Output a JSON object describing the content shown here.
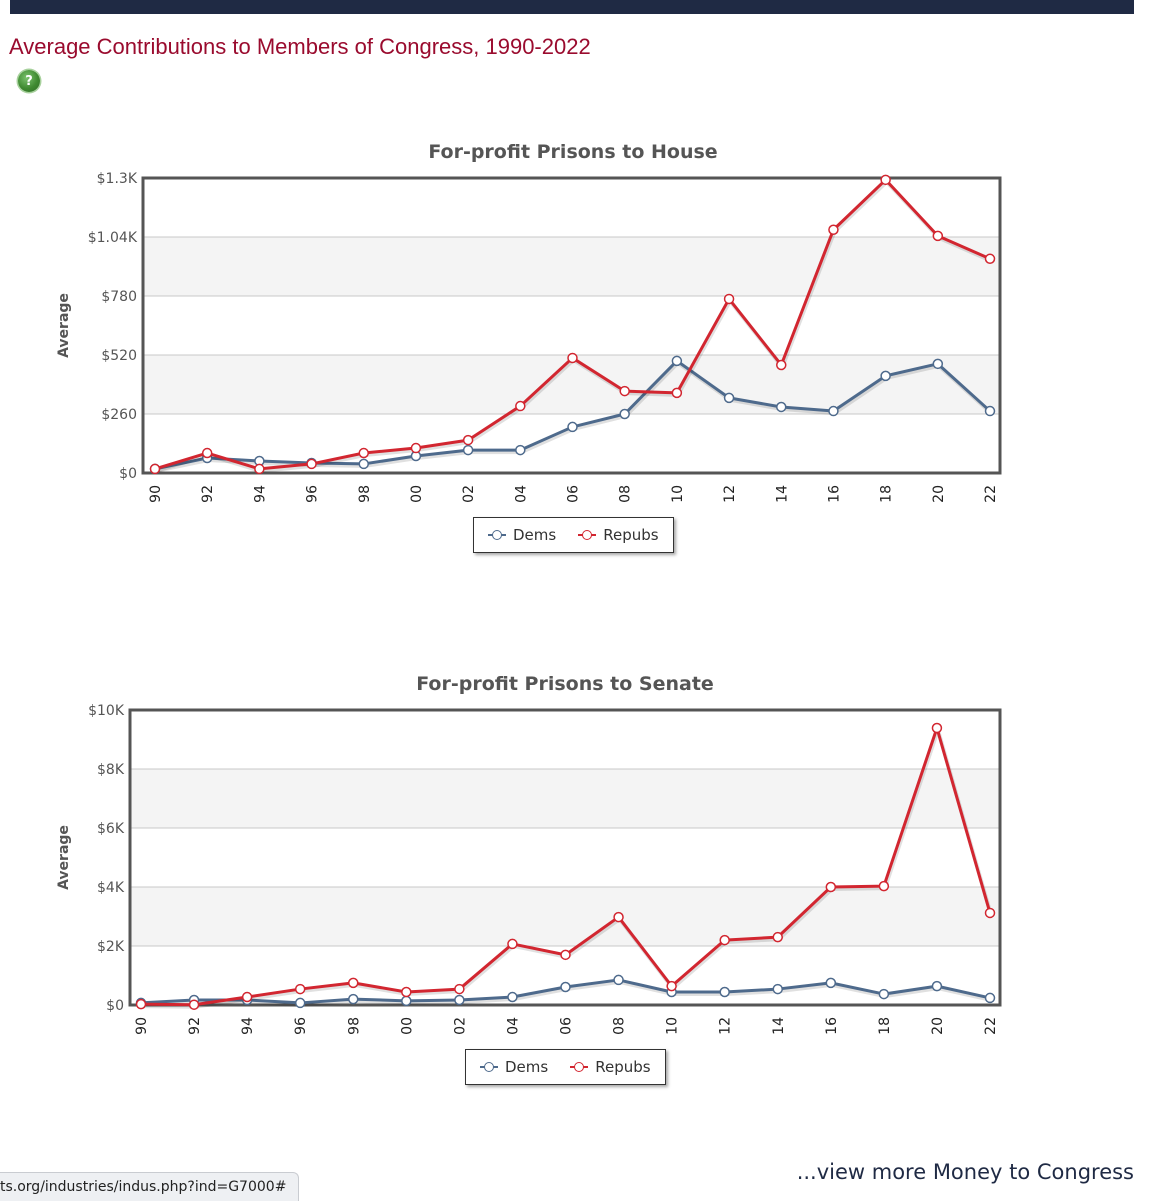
{
  "page": {
    "title": "Average Contributions to Members of Congress, 1990-2022",
    "help_icon": "question-mark-icon",
    "more_link": "...view more Money to Congress",
    "status_url": "ts.org/industries/indus.php?ind=G7000#"
  },
  "colors": {
    "header_bar": "#1f2a44",
    "title": "#9a0b2e",
    "dems": "#4e6a8c",
    "repubs": "#d22630",
    "band": "#f4f4f4",
    "grid": "#c8c8c8"
  },
  "chart_data": [
    {
      "type": "line",
      "title": "For-profit Prisons to House",
      "xlabel": "",
      "ylabel": "Average",
      "categories": [
        "90",
        "92",
        "94",
        "96",
        "98",
        "00",
        "02",
        "04",
        "06",
        "08",
        "10",
        "12",
        "14",
        "16",
        "18",
        "20",
        "22"
      ],
      "ylim": [
        0,
        1300
      ],
      "yticks": [
        0,
        260,
        520,
        780,
        1040,
        1300
      ],
      "ytick_labels": [
        "$0",
        "$260",
        "$520",
        "$780",
        "$1.04K",
        "$1.3K"
      ],
      "grid": true,
      "legend": "bottom-center",
      "series": [
        {
          "name": "Dems",
          "color": "#4e6a8c",
          "values": [
            18,
            66,
            53,
            44,
            40,
            75,
            101,
            101,
            203,
            260,
            494,
            331,
            291,
            273,
            428,
            481,
            273
          ]
        },
        {
          "name": "Repubs",
          "color": "#d22630",
          "values": [
            18,
            88,
            18,
            40,
            88,
            110,
            145,
            295,
            507,
            361,
            353,
            767,
            476,
            1072,
            1292,
            1045,
            944
          ]
        }
      ]
    },
    {
      "type": "line",
      "title": "For-profit Prisons to Senate",
      "xlabel": "",
      "ylabel": "Average",
      "categories": [
        "90",
        "92",
        "94",
        "96",
        "98",
        "00",
        "02",
        "04",
        "06",
        "08",
        "10",
        "12",
        "14",
        "16",
        "18",
        "20",
        "22"
      ],
      "ylim": [
        0,
        10000
      ],
      "yticks": [
        0,
        2000,
        4000,
        6000,
        8000,
        10000
      ],
      "ytick_labels": [
        "$0",
        "$2K",
        "$4K",
        "$6K",
        "$8K",
        "$10K"
      ],
      "grid": true,
      "legend": "bottom-center",
      "series": [
        {
          "name": "Dems",
          "color": "#4e6a8c",
          "values": [
            70,
            170,
            170,
            70,
            200,
            140,
            170,
            270,
            610,
            850,
            440,
            440,
            540,
            750,
            370,
            640,
            240
          ]
        },
        {
          "name": "Repubs",
          "color": "#d22630",
          "values": [
            30,
            10,
            270,
            540,
            750,
            440,
            540,
            2070,
            1700,
            2980,
            640,
            2200,
            2300,
            4000,
            4030,
            9390,
            3120
          ]
        }
      ]
    }
  ]
}
